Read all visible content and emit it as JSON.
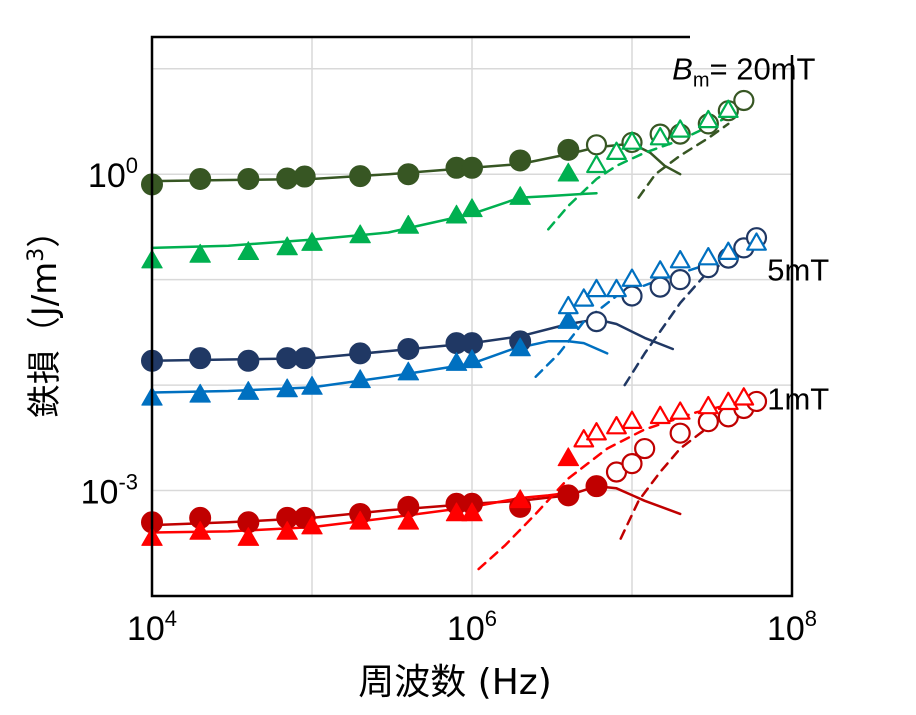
{
  "chart_data": {
    "type": "scatter",
    "xlabel": "周波数 (Hz)",
    "ylabel": "鉄損 (J/m3)",
    "ylabel_text": "鉄損（J/m",
    "ylabel_sup": "3",
    "ylabel_close": "）",
    "x_scale": "log",
    "y_scale": "log",
    "xlim": [
      10000,
      100000000
    ],
    "ylim": [
      0.0001,
      20
    ],
    "grid": true,
    "x_ticks": [
      {
        "value": 10000,
        "base": "10",
        "exp": "4"
      },
      {
        "value": 1000000,
        "base": "10",
        "exp": "6"
      },
      {
        "value": 100000000,
        "base": "10",
        "exp": "8"
      }
    ],
    "y_ticks": [
      {
        "value": 0.001,
        "base": "10",
        "exp": "-3"
      },
      {
        "value": 1,
        "base": "10",
        "exp": "0"
      }
    ],
    "annotations": [
      {
        "id": "bm20",
        "prefix": "B",
        "sub": "m",
        "text": "= 20mT",
        "x": 50000000,
        "y": 10
      },
      {
        "id": "bm5",
        "text": "5mT",
        "x": 70000000,
        "y": 0.125
      },
      {
        "id": "bm1",
        "text": "1mT",
        "x": 70000000,
        "y": 0.0075
      }
    ],
    "series": [
      {
        "name": "20mT-circle",
        "color": "#375623",
        "marker": "circle",
        "filled": true,
        "x": [
          10000,
          20000,
          40000,
          70000,
          90000,
          200000,
          400000,
          800000,
          1000000,
          2000000,
          4000000
        ],
        "y": [
          0.8,
          0.9,
          0.9,
          0.91,
          0.95,
          0.96,
          1.0,
          1.15,
          1.15,
          1.35,
          1.7
        ]
      },
      {
        "name": "20mT-circle-open",
        "color": "#375623",
        "marker": "circle",
        "filled": false,
        "x": [
          6000000,
          10000000,
          15000000,
          20000000,
          30000000,
          40000000,
          50000000
        ],
        "y": [
          1.9,
          2.0,
          2.4,
          2.4,
          3.0,
          4.0,
          5.0
        ]
      },
      {
        "name": "20mT-triangle",
        "color": "#00b050",
        "marker": "triangle",
        "filled": true,
        "x": [
          10000,
          20000,
          40000,
          70000,
          100000,
          200000,
          400000,
          800000,
          1000000,
          2000000,
          4000000
        ],
        "y": [
          0.15,
          0.17,
          0.18,
          0.2,
          0.22,
          0.26,
          0.32,
          0.4,
          0.46,
          0.6,
          1.0
        ]
      },
      {
        "name": "20mT-triangle-open",
        "color": "#00b050",
        "marker": "triangle",
        "filled": false,
        "x": [
          6000000,
          8000000,
          10000000,
          15000000,
          20000000,
          30000000,
          40000000
        ],
        "y": [
          1.2,
          1.6,
          2.0,
          2.2,
          2.6,
          3.2,
          4.0
        ]
      },
      {
        "name": "5mT-circle",
        "color": "#203864",
        "marker": "circle",
        "filled": true,
        "x": [
          10000,
          20000,
          40000,
          70000,
          90000,
          200000,
          400000,
          800000,
          1000000,
          2000000
        ],
        "y": [
          0.017,
          0.018,
          0.017,
          0.018,
          0.018,
          0.02,
          0.022,
          0.025,
          0.025,
          0.026
        ]
      },
      {
        "name": "5mT-circle-open",
        "color": "#203864",
        "marker": "circle",
        "filled": false,
        "x": [
          6000000,
          10000000,
          15000000,
          20000000,
          30000000,
          40000000,
          50000000,
          60000000
        ],
        "y": [
          0.04,
          0.07,
          0.085,
          0.1,
          0.13,
          0.16,
          0.2,
          0.25
        ]
      },
      {
        "name": "5mT-triangle",
        "color": "#0070c0",
        "marker": "triangle",
        "filled": true,
        "x": [
          10000,
          20000,
          40000,
          70000,
          100000,
          200000,
          400000,
          800000,
          1000000,
          2000000,
          4000000
        ],
        "y": [
          0.0075,
          0.008,
          0.0085,
          0.009,
          0.0095,
          0.011,
          0.013,
          0.016,
          0.017,
          0.022,
          0.04
        ]
      },
      {
        "name": "5mT-triangle-open",
        "color": "#0070c0",
        "marker": "triangle",
        "filled": false,
        "x": [
          4000000,
          5000000,
          6000000,
          8000000,
          10000000,
          15000000,
          20000000,
          30000000,
          40000000,
          60000000
        ],
        "y": [
          0.055,
          0.065,
          0.08,
          0.08,
          0.1,
          0.12,
          0.15,
          0.16,
          0.18,
          0.22
        ]
      },
      {
        "name": "1mT-circle",
        "color": "#c00000",
        "marker": "circle",
        "filled": true,
        "x": [
          10000,
          20000,
          40000,
          70000,
          90000,
          200000,
          400000,
          800000,
          1000000,
          2000000,
          4000000,
          6000000
        ],
        "y": [
          0.0005,
          0.00055,
          0.0005,
          0.00055,
          0.00055,
          0.0006,
          0.0007,
          0.00075,
          0.00075,
          0.0007,
          0.0009,
          0.0011
        ]
      },
      {
        "name": "1mT-circle-open",
        "color": "#c00000",
        "marker": "circle",
        "filled": false,
        "x": [
          8000000,
          10000000,
          12000000,
          20000000,
          30000000,
          40000000,
          50000000,
          60000000
        ],
        "y": [
          0.0015,
          0.0018,
          0.0025,
          0.0035,
          0.0045,
          0.005,
          0.006,
          0.007
        ]
      },
      {
        "name": "1mT-triangle",
        "color": "#ff0000",
        "marker": "triangle",
        "filled": true,
        "x": [
          10000,
          20000,
          40000,
          70000,
          100000,
          200000,
          400000,
          800000,
          1000000,
          2000000,
          4000000
        ],
        "y": [
          0.00035,
          0.0004,
          0.00035,
          0.0004,
          0.00045,
          0.0005,
          0.0005,
          0.0006,
          0.0006,
          0.0008,
          0.002
        ]
      },
      {
        "name": "1mT-triangle-open",
        "color": "#ff0000",
        "marker": "triangle",
        "filled": false,
        "x": [
          5000000,
          6000000,
          8000000,
          10000000,
          15000000,
          20000000,
          30000000,
          40000000,
          50000000
        ],
        "y": [
          0.003,
          0.0035,
          0.004,
          0.0045,
          0.005,
          0.0055,
          0.0062,
          0.0068,
          0.0075
        ]
      }
    ],
    "curves": [
      {
        "name": "20mT-circle-fit",
        "color": "#375623",
        "dash": false,
        "x": [
          10000,
          30000,
          100000,
          300000,
          1000000,
          2000000,
          4000000,
          6000000,
          10000000,
          13000000,
          16000000,
          20000000
        ],
        "y": [
          0.86,
          0.88,
          0.9,
          1.0,
          1.15,
          1.25,
          1.55,
          1.8,
          1.95,
          1.6,
          1.2,
          1.0
        ]
      },
      {
        "name": "20mT-circle-ext",
        "color": "#375623",
        "dash": true,
        "x": [
          11000000,
          14000000,
          20000000,
          30000000,
          40000000
        ],
        "y": [
          0.6,
          1.0,
          1.5,
          2.2,
          3.0
        ]
      },
      {
        "name": "20mT-triangle-fit",
        "color": "#00b050",
        "dash": false,
        "x": [
          10000,
          30000,
          100000,
          300000,
          1000000,
          2000000,
          3000000,
          5000000,
          6000000
        ],
        "y": [
          0.2,
          0.21,
          0.24,
          0.28,
          0.42,
          0.6,
          0.62,
          0.65,
          0.66
        ]
      },
      {
        "name": "20mT-triangle-ext",
        "color": "#00b050",
        "dash": true,
        "x": [
          3000000,
          4000000,
          6000000,
          8000000,
          12000000,
          20000000,
          40000000
        ],
        "y": [
          0.3,
          0.5,
          0.9,
          1.2,
          1.6,
          2.1,
          3.5
        ]
      },
      {
        "name": "5mT-circle-fit",
        "color": "#203864",
        "dash": false,
        "x": [
          10000,
          30000,
          100000,
          300000,
          1000000,
          2000000,
          4000000,
          6000000,
          8000000,
          12000000,
          18000000
        ],
        "y": [
          0.017,
          0.0175,
          0.018,
          0.021,
          0.025,
          0.029,
          0.038,
          0.042,
          0.038,
          0.028,
          0.022
        ]
      },
      {
        "name": "5mT-circle-ext",
        "color": "#203864",
        "dash": true,
        "x": [
          9000000,
          12000000,
          20000000,
          30000000,
          50000000,
          70000000
        ],
        "y": [
          0.01,
          0.02,
          0.06,
          0.12,
          0.18,
          0.22
        ]
      },
      {
        "name": "5mT-triangle-fit",
        "color": "#0070c0",
        "dash": false,
        "x": [
          10000,
          30000,
          100000,
          300000,
          1000000,
          1800000,
          3000000,
          4000000,
          5000000,
          7000000
        ],
        "y": [
          0.0085,
          0.0088,
          0.0095,
          0.012,
          0.016,
          0.022,
          0.026,
          0.026,
          0.025,
          0.02
        ]
      },
      {
        "name": "5mT-triangle-ext",
        "color": "#0070c0",
        "dash": true,
        "x": [
          2500000,
          3500000,
          5000000,
          8000000,
          15000000,
          30000000,
          60000000
        ],
        "y": [
          0.012,
          0.02,
          0.04,
          0.07,
          0.1,
          0.14,
          0.22
        ]
      },
      {
        "name": "1mT-circle-fit",
        "color": "#c00000",
        "dash": false,
        "x": [
          10000,
          30000,
          100000,
          300000,
          1000000,
          2000000,
          4000000,
          6000000,
          8000000,
          12000000,
          20000000
        ],
        "y": [
          0.00047,
          0.0005,
          0.00055,
          0.00065,
          0.00075,
          0.0008,
          0.0009,
          0.0011,
          0.00105,
          0.0008,
          0.0006
        ]
      },
      {
        "name": "1mT-circle-ext",
        "color": "#c00000",
        "dash": true,
        "x": [
          8500000,
          11000000,
          15000000,
          20000000,
          30000000,
          45000000,
          65000000
        ],
        "y": [
          0.00035,
          0.0008,
          0.0015,
          0.0025,
          0.004,
          0.0055,
          0.0075
        ]
      },
      {
        "name": "1mT-triangle-fit",
        "color": "#ff0000",
        "dash": false,
        "x": [
          10000,
          30000,
          100000,
          300000,
          1000000,
          2000000,
          3000000,
          4000000
        ],
        "y": [
          0.0004,
          0.00041,
          0.00045,
          0.00055,
          0.0007,
          0.00085,
          0.0009,
          0.00095
        ]
      },
      {
        "name": "1mT-triangle-ext",
        "color": "#ff0000",
        "dash": true,
        "x": [
          1100000,
          1600000,
          2500000,
          4000000,
          7000000,
          12000000,
          25000000,
          60000000
        ],
        "y": [
          0.00018,
          0.0003,
          0.0006,
          0.0013,
          0.0025,
          0.0038,
          0.0055,
          0.0075
        ]
      }
    ]
  }
}
